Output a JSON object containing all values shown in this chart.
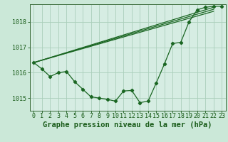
{
  "title": "Graphe pression niveau de la mer (hPa)",
  "background_color": "#cbe8d8",
  "plot_bg_color": "#d6ede3",
  "line_color": "#1a6622",
  "grid_color": "#aacfbb",
  "axis_color": "#336633",
  "text_color": "#1a5c1a",
  "xlim": [
    -0.5,
    23.5
  ],
  "ylim": [
    1014.5,
    1018.7
  ],
  "yticks": [
    1015,
    1016,
    1017,
    1018
  ],
  "xticks": [
    0,
    1,
    2,
    3,
    4,
    5,
    6,
    7,
    8,
    9,
    10,
    11,
    12,
    13,
    14,
    15,
    16,
    17,
    18,
    19,
    20,
    21,
    22,
    23
  ],
  "series1_y": [
    1016.4,
    1016.15,
    1015.85,
    1016.0,
    1016.05,
    1015.65,
    1015.35,
    1015.05,
    1015.0,
    1014.95,
    1014.88,
    1015.28,
    1015.3,
    1014.82,
    1014.88,
    1015.6,
    1016.35,
    1017.15,
    1017.2,
    1018.0,
    1018.48,
    1018.58,
    1018.62,
    1018.62
  ],
  "straight_lines": [
    {
      "x": [
        0,
        22
      ],
      "y": [
        1016.4,
        1018.58
      ]
    },
    {
      "x": [
        0,
        22
      ],
      "y": [
        1016.4,
        1018.5
      ]
    },
    {
      "x": [
        0,
        22
      ],
      "y": [
        1016.4,
        1018.42
      ]
    }
  ],
  "tick_fontsize": 6,
  "label_fontsize": 7.5,
  "marker": "D",
  "marker_size": 2.2,
  "linewidth": 0.9
}
